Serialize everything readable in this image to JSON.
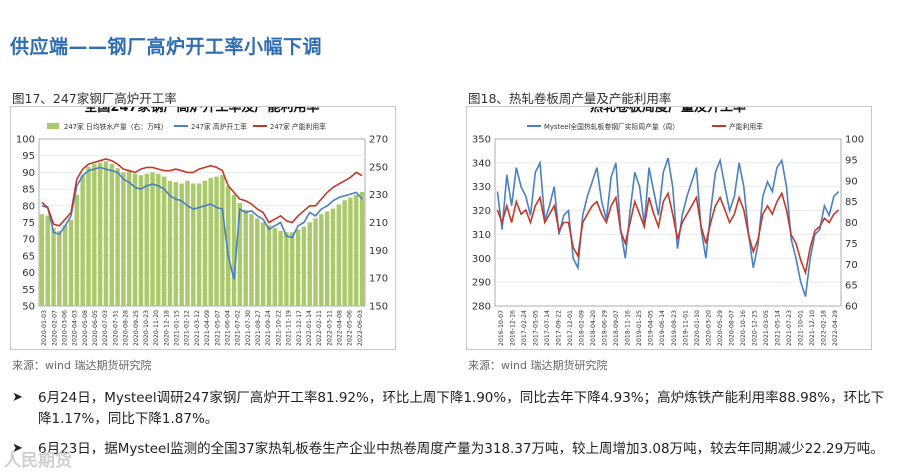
{
  "slide": {
    "title": "供应端——钢厂高炉开工率小幅下调"
  },
  "left_figure": {
    "caption": "图17、247家钢厂高炉开工率",
    "source": "来源：wind   瑞达期货研究院"
  },
  "right_figure": {
    "caption": "图18、热轧卷板周产量及产能利用率",
    "source": "来源：wind   瑞达期货研究院"
  },
  "bullets": [
    {
      "text_line1": "6月24日，Mysteel调研247家钢厂高炉开工率81.92%，环比上周下降1.90%，同比去年下降4.93%；高炉炼铁产能利用率88.98%，环比下",
      "text_line2": "降1.17%，同比下降1.87%。"
    },
    {
      "text_line1": "6月23日，据Mysteel监测的全国37家热轧板卷生产企业中热卷周度产量为318.37万吨，较上周增加3.08万吨，较去年同期减少22.29万吨。"
    }
  ],
  "watermark": "人民期货",
  "colors": {
    "title": "#2f6db3",
    "bar": "#a9c96a",
    "blue": "#4a7fc1",
    "red": "#c0392b"
  },
  "chart_data": [
    {
      "type": "bar",
      "title": "全国247家钢厂高炉开工率及产能利用率",
      "legend": [
        "247家 日均铁水产量（右：万吨）",
        "247家 高炉开工率",
        "247家 产能利用率"
      ],
      "legend_position": "top",
      "ylim_left": [
        50,
        100
      ],
      "yticks_left": [
        "50",
        "55",
        "60",
        "65",
        "70",
        "75",
        "80",
        "85",
        "90",
        "95",
        "100"
      ],
      "ylim_right": [
        150,
        270
      ],
      "yticks_right": [
        "150",
        "170",
        "190",
        "210",
        "230",
        "250",
        "270"
      ],
      "x_ticks": [
        "2020-01-03",
        "2020-02-07",
        "2020-03-06",
        "2020-04-03",
        "2020-05-08",
        "2020-06-05",
        "2020-07-03",
        "2020-07-31",
        "2020-08-28",
        "2020-09-25",
        "2020-10-23",
        "2020-11-20",
        "2020-12-18",
        "2021-01-15",
        "2021-02-12",
        "2021-03-12",
        "2021-04-09",
        "2021-05-07",
        "2021-06-04",
        "2021-07-02",
        "2021-07-30",
        "2021-08-27",
        "2021-09-24",
        "2021-10-22",
        "2021-11-19",
        "2021-12-17",
        "2022-01-14",
        "2022-02-11",
        "2022-03-11",
        "2022-04-08",
        "2022-05-06",
        "2022-06-03"
      ],
      "series": [
        {
          "name": "247家 日均铁水产量（右：万吨）",
          "axis": "right",
          "style": "bar",
          "values": [
            216,
            215,
            206,
            204,
            208,
            212,
            230,
            244,
            250,
            252,
            253,
            254,
            252,
            249,
            246,
            247,
            245,
            244,
            245,
            246,
            245,
            243,
            240,
            239,
            238,
            240,
            238,
            238,
            240,
            242,
            243,
            244,
            236,
            230,
            224,
            219,
            216,
            213,
            210,
            208,
            206,
            204,
            203,
            203,
            205,
            207,
            210,
            213,
            216,
            218,
            220,
            223,
            226,
            228,
            230,
            232
          ]
        },
        {
          "name": "247家 高炉开工率",
          "axis": "left",
          "style": "line",
          "values": [
            80,
            79.5,
            72,
            71.5,
            74,
            77,
            86,
            89,
            90.5,
            91,
            91.5,
            91,
            90.5,
            90,
            88,
            87,
            85.5,
            85,
            86,
            86.5,
            86,
            85,
            83,
            82,
            81.5,
            80,
            79,
            79.5,
            80,
            80.5,
            79.5,
            79,
            65,
            58,
            79,
            78,
            78.5,
            77,
            76,
            73,
            74,
            75,
            71,
            70.5,
            74,
            75,
            78,
            77,
            79,
            80,
            81.5,
            82.5,
            83,
            83.5,
            84,
            82
          ]
        },
        {
          "name": "247家 产能利用率",
          "axis": "left",
          "style": "line",
          "values": [
            81,
            79.5,
            74.5,
            74,
            76,
            78,
            88,
            91,
            92.5,
            93,
            93.5,
            94,
            93.5,
            92.5,
            91,
            90.5,
            90,
            91,
            91.5,
            91.5,
            91,
            90.5,
            90.5,
            91,
            90.5,
            90,
            90,
            91,
            91.5,
            92,
            91.5,
            90.5,
            86,
            84,
            82,
            81.5,
            80.5,
            79,
            78,
            75,
            76,
            77,
            75.5,
            75,
            77,
            78.5,
            80,
            80,
            82,
            84,
            85.5,
            86.5,
            87.5,
            88.5,
            90,
            89
          ]
        }
      ]
    },
    {
      "type": "line",
      "title": "热轧卷板周度产量及开工率",
      "legend": [
        "Mysteel全国热轧板卷钢厂实际周产量（周）",
        "产能利用率"
      ],
      "legend_position": "top",
      "ylim_left": [
        280,
        350
      ],
      "yticks_left": [
        "280",
        "290",
        "300",
        "310",
        "320",
        "330",
        "340",
        "350"
      ],
      "ylim_right": [
        60,
        100
      ],
      "yticks_right": [
        "60",
        "65",
        "70",
        "75",
        "80",
        "85",
        "90",
        "95",
        "100"
      ],
      "x_ticks": [
        "2016-10-07",
        "2016-12-16",
        "2017-02-24",
        "2017-05-05",
        "2017-07-14",
        "2017-09-22",
        "2017-12-01",
        "2018-02-09",
        "2018-04-20",
        "2018-06-29",
        "2018-09-07",
        "2018-11-16",
        "2019-01-25",
        "2019-04-05",
        "2019-06-14",
        "2019-08-23",
        "2019-11-01",
        "2020-01-10",
        "2020-03-20",
        "2020-05-29",
        "2020-08-07",
        "2020-10-16",
        "2020-12-25",
        "2021-03-05",
        "2021-05-14",
        "2021-07-23",
        "2021-10-01",
        "2021-12-10",
        "2022-02-18",
        "2022-04-29"
      ],
      "series": [
        {
          "name": "Mysteel全国热轧板卷钢厂实际周产量（周）",
          "axis": "left",
          "color": "blue",
          "values": [
            328,
            312,
            335,
            322,
            338,
            330,
            326,
            318,
            336,
            340,
            316,
            322,
            330,
            310,
            318,
            320,
            300,
            296,
            318,
            326,
            332,
            338,
            324,
            316,
            334,
            340,
            312,
            300,
            320,
            336,
            330,
            314,
            338,
            328,
            318,
            336,
            342,
            330,
            304,
            318,
            326,
            332,
            338,
            312,
            300,
            320,
            336,
            341,
            330,
            320,
            326,
            340,
            330,
            310,
            296,
            306,
            326,
            332,
            328,
            338,
            341,
            330,
            308,
            300,
            290,
            284,
            300,
            310,
            312,
            322,
            318,
            326,
            328
          ]
        },
        {
          "name": "产能利用率",
          "axis": "right",
          "color": "red",
          "values": [
            83,
            80,
            84,
            80,
            85,
            82,
            83,
            80,
            84,
            86,
            80,
            82,
            84,
            78,
            80,
            80,
            74,
            72,
            80,
            82,
            84,
            85,
            82,
            80,
            84,
            86,
            78,
            75,
            80,
            85,
            82,
            79,
            86,
            82,
            79,
            85,
            87,
            82,
            76,
            80,
            82,
            84,
            86,
            79,
            75,
            80,
            84,
            86,
            83,
            80,
            82,
            86,
            83,
            77,
            73,
            76,
            82,
            84,
            82,
            85,
            87,
            83,
            77,
            75,
            71,
            68,
            74,
            78,
            79,
            81,
            80,
            82,
            83
          ]
        }
      ]
    }
  ]
}
